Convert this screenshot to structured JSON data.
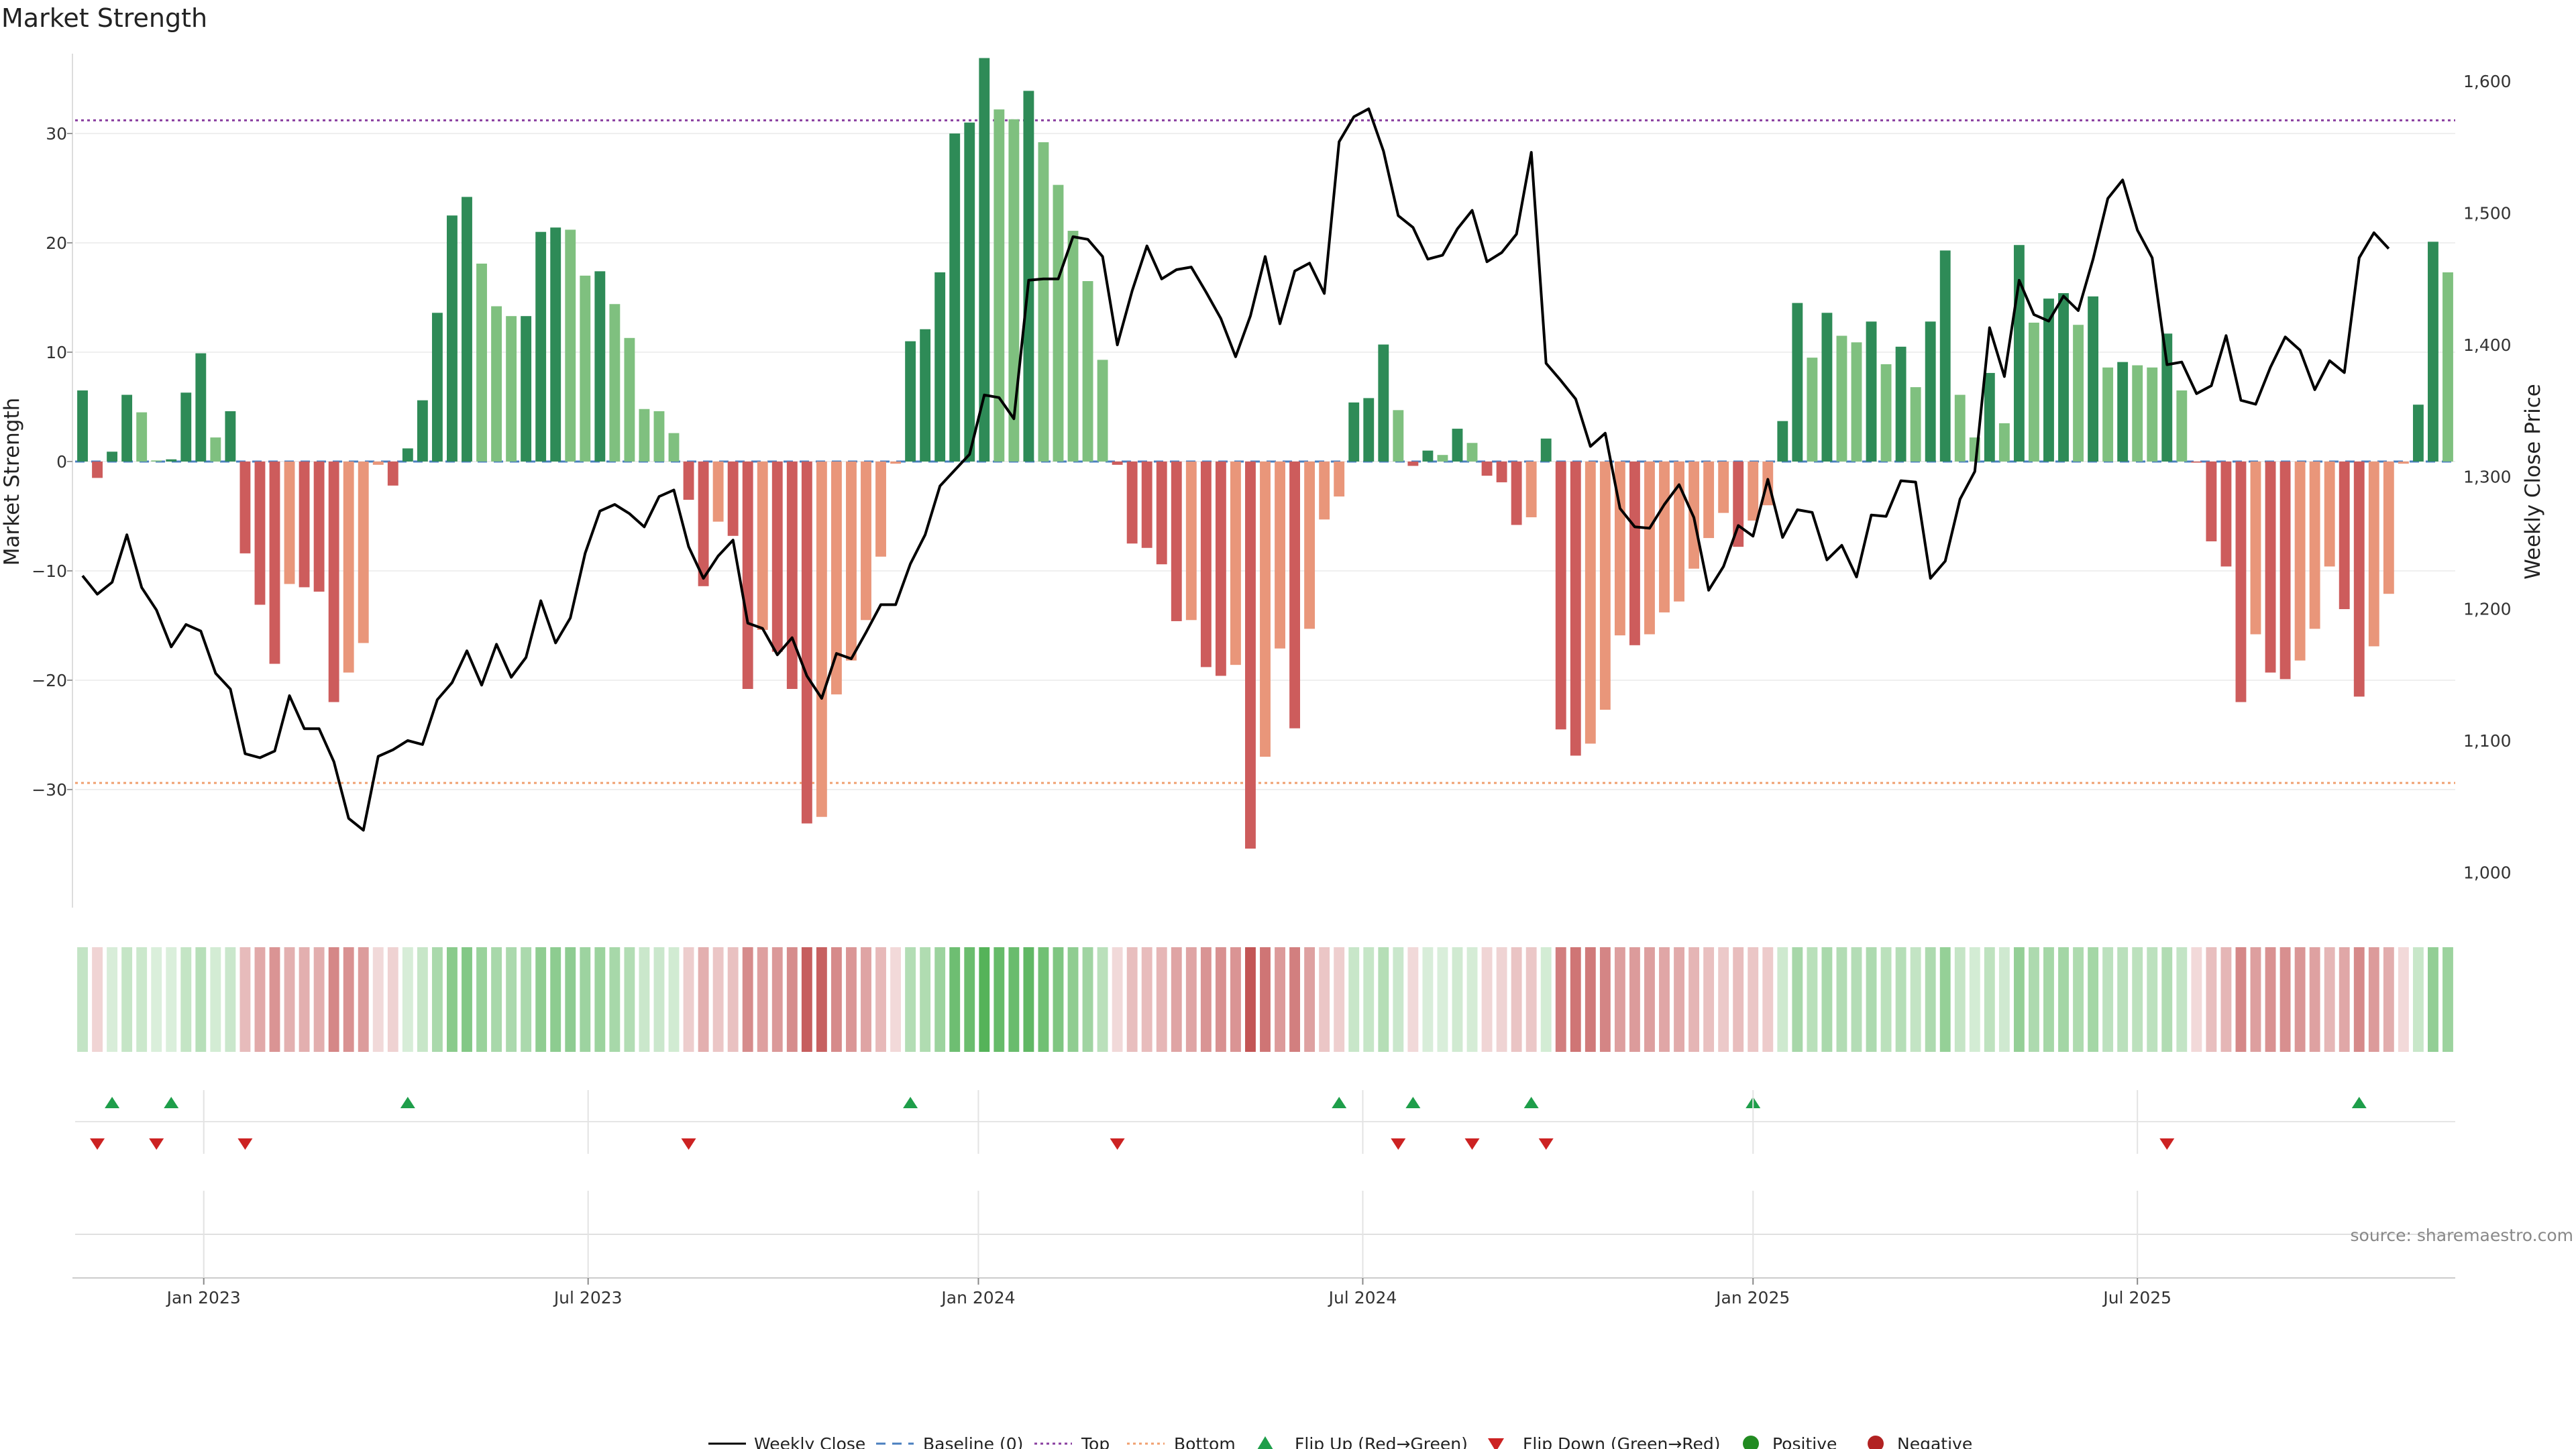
{
  "chart_data": {
    "type": "bar+line",
    "title": "Market Strength",
    "ylabel_left": "Market Strength",
    "ylabel_right": "Weekly Close Price",
    "source": "source: sharemaestro.com",
    "left_ticks": [
      "30",
      "20",
      "10",
      "0",
      "−10",
      "−20",
      "−30"
    ],
    "left_tick_values": [
      30,
      20,
      10,
      0,
      -10,
      -20,
      -30
    ],
    "right_ticks": [
      "1,600",
      "1,500",
      "1,400",
      "1,300",
      "1,200",
      "1,100",
      "1,000"
    ],
    "right_tick_values": [
      1600,
      1500,
      1400,
      1300,
      1200,
      1100,
      1000
    ],
    "left_range": [
      -40.8,
      37.3
    ],
    "right_range": [
      973.3,
      1620.8
    ],
    "top_level": 31.2,
    "bottom_level": -29.4,
    "x_ticks": [
      "Jan 2023",
      "Jul 2023",
      "Jan 2024",
      "Jul 2024",
      "Jan 2025",
      "Jul 2025"
    ],
    "x_tick_index": [
      8.2,
      34.2,
      60.6,
      86.6,
      113.0,
      139.0
    ],
    "strength": [
      6.5,
      -1.5,
      0.9,
      6.1,
      4.5,
      0.1,
      0.2,
      6.3,
      9.9,
      2.2,
      4.6,
      -8.4,
      -13.1,
      -18.5,
      -11.2,
      -11.5,
      -11.9,
      -22.0,
      -19.3,
      -16.6,
      -0.3,
      -2.2,
      1.2,
      5.6,
      13.6,
      22.5,
      24.2,
      18.1,
      14.2,
      13.3,
      13.3,
      21.0,
      21.4,
      21.2,
      17.0,
      17.4,
      14.4,
      11.3,
      4.8,
      4.6,
      2.6,
      -3.5,
      -11.4,
      -5.5,
      -6.8,
      -20.8,
      -15.4,
      -17.4,
      -20.8,
      -33.1,
      -32.5,
      -21.3,
      -18.2,
      -14.5,
      -8.7,
      -0.2,
      11.0,
      12.1,
      17.3,
      30.0,
      31.0,
      36.9,
      32.2,
      31.3,
      33.9,
      29.2,
      25.3,
      21.1,
      16.5,
      9.3,
      -0.3,
      -7.5,
      -7.9,
      -9.4,
      -14.6,
      -14.5,
      -18.8,
      -19.6,
      -18.6,
      -35.4,
      -27.0,
      -17.1,
      -24.4,
      -15.3,
      -5.3,
      -3.2,
      5.4,
      5.8,
      10.7,
      4.7,
      -0.4,
      1.0,
      0.6,
      3.0,
      1.7,
      -1.3,
      -1.9,
      -5.8,
      -5.1,
      2.1,
      -24.5,
      -26.9,
      -25.8,
      -22.7,
      -15.9,
      -16.8,
      -15.8,
      -13.8,
      -12.8,
      -9.8,
      -7.0,
      -4.7,
      -7.8,
      -5.4,
      -4.0,
      3.7,
      14.5,
      9.5,
      13.6,
      11.5,
      10.9,
      12.8,
      8.9,
      10.5,
      6.8,
      12.8,
      19.3,
      6.1,
      2.2,
      8.1,
      3.5,
      19.8,
      12.7,
      14.9,
      15.4,
      12.5,
      15.1,
      8.6,
      9.1,
      8.8,
      8.6,
      11.7,
      6.5,
      -0.1,
      -7.3,
      -9.6,
      -22.0,
      -15.8,
      -19.3,
      -19.9,
      -18.2,
      -15.3,
      -9.6,
      -13.5,
      -21.5,
      -16.9,
      -12.1,
      -0.2,
      5.2,
      20.1,
      17.3
    ],
    "weekly_close": [
      1225,
      1211,
      1220,
      1256,
      1216,
      1199,
      1171,
      1188,
      1183,
      1151,
      1139,
      1090,
      1087,
      1092,
      1134,
      1109,
      1109,
      1084,
      1041,
      1032,
      1088,
      1093,
      1100,
      1097,
      1131,
      1144,
      1168,
      1142,
      1173,
      1148,
      1163,
      1206,
      1174,
      1193,
      1242,
      1274,
      1279,
      1272,
      1262,
      1285,
      1290,
      1247,
      1223,
      1240,
      1252,
      1189,
      1185,
      1165,
      1178,
      1149,
      1132,
      1166,
      1162,
      1182,
      1203,
      1203,
      1234,
      1256,
      1293,
      1305,
      1317,
      1362,
      1360,
      1344,
      1449,
      1450,
      1450,
      1482,
      1480,
      1467,
      1400,
      1441,
      1475,
      1450,
      1457,
      1459,
      1440,
      1420,
      1391,
      1422,
      1467,
      1416,
      1456,
      1462,
      1439,
      1554,
      1573,
      1579,
      1547,
      1498,
      1489,
      1465,
      1468,
      1488,
      1502,
      1463,
      1470,
      1484,
      1546,
      1386,
      1373,
      1359,
      1323,
      1333,
      1276,
      1262,
      1261,
      1279,
      1294,
      1269,
      1214,
      1232,
      1263,
      1255,
      1298,
      1254,
      1275,
      1273,
      1237,
      1248,
      1224,
      1271,
      1270,
      1297,
      1296,
      1223,
      1236,
      1283,
      1304,
      1413,
      1376,
      1449,
      1423,
      1418,
      1437,
      1426,
      1465,
      1511,
      1525,
      1487,
      1466,
      1385,
      1387,
      1363,
      1369,
      1407,
      1358,
      1355,
      1383,
      1406,
      1396,
      1366,
      1388,
      1379,
      1466,
      1485,
      1473
    ],
    "flip_up_index": [
      2,
      6,
      22,
      56,
      85,
      90,
      98,
      113,
      154
    ],
    "flip_down_index": [
      1,
      5,
      11,
      41,
      70,
      89,
      94,
      99,
      141
    ],
    "legend": {
      "weekly_close": "Weekly Close",
      "baseline": "Baseline (0)",
      "top": "Top",
      "bottom": "Bottom",
      "flip_up": "Flip Up (Red→Green)",
      "flip_down": "Flip Down (Green→Red)",
      "positive": "Positive",
      "negative": "Negative"
    },
    "colors": {
      "pos_strong": "#2e8b57",
      "pos_light": "#7fc07f",
      "neg_strong": "#cd5c5c",
      "neg_light": "#e9967a",
      "line": "#000000",
      "baseline": "#4a7fbf",
      "top": "#8a3fa0",
      "bottom": "#f0a070",
      "flip_up": "#1e9e4a",
      "flip_down": "#cc2222",
      "positive": "#228b22",
      "negative": "#b22222"
    }
  }
}
